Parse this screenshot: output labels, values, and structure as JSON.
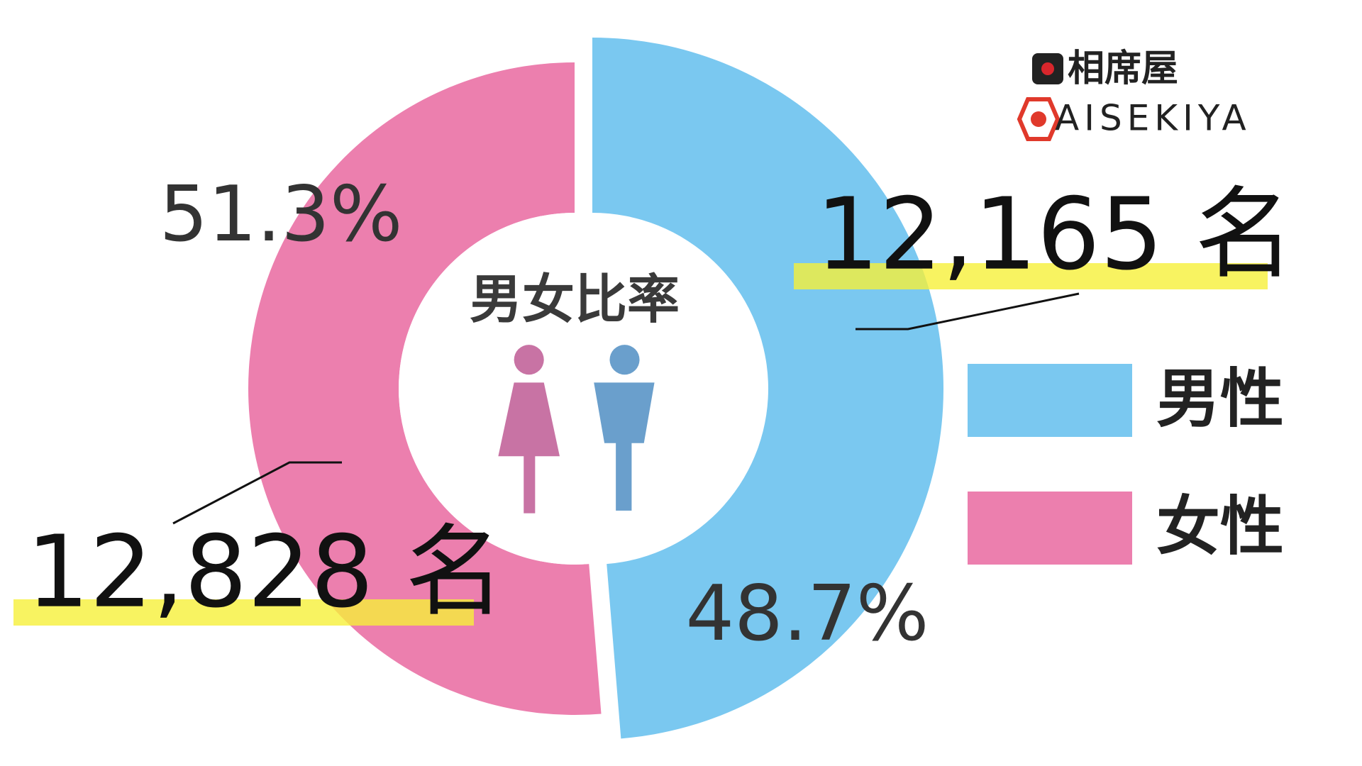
{
  "chart_data": {
    "type": "pie",
    "title": "男女比率",
    "categories": [
      "男性",
      "女性"
    ],
    "values": [
      48.7,
      51.3
    ],
    "value_labels": [
      "48.7%",
      "51.3%"
    ],
    "count_labels": [
      "12,165 名",
      "12,828 名"
    ],
    "colors": [
      "#7ac8f0",
      "#ec7fae"
    ],
    "legend": "right"
  },
  "logo": {
    "name": "相席屋",
    "romaji": "AISEKIYA"
  }
}
